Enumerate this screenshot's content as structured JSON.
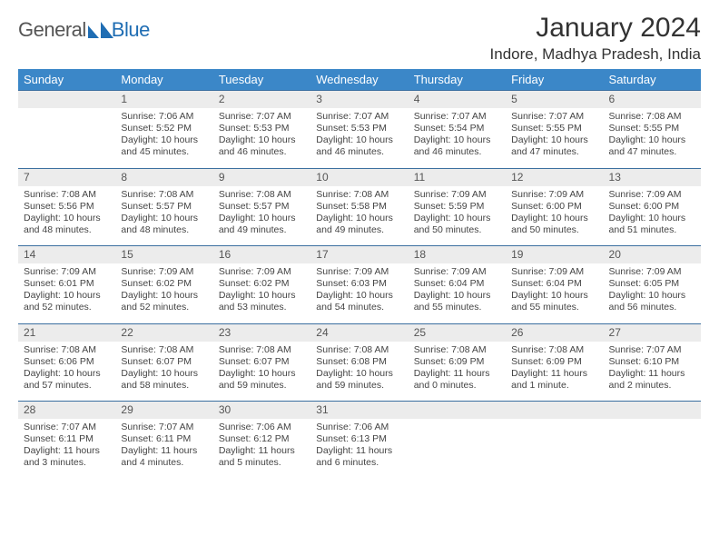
{
  "brand": {
    "part1": "General",
    "part2": "Blue"
  },
  "title": "January 2024",
  "location": "Indore, Madhya Pradesh, India",
  "colors": {
    "header_bg": "#3b87c8",
    "row_border": "#3b6fa0",
    "daynum_bg": "#ececec",
    "text": "#444",
    "title": "#333"
  },
  "daysOfWeek": [
    "Sunday",
    "Monday",
    "Tuesday",
    "Wednesday",
    "Thursday",
    "Friday",
    "Saturday"
  ],
  "firstWeekday": 1,
  "daysInMonth": 31,
  "days": {
    "1": {
      "sunrise": "7:06 AM",
      "sunset": "5:52 PM",
      "daylight": "10 hours and 45 minutes."
    },
    "2": {
      "sunrise": "7:07 AM",
      "sunset": "5:53 PM",
      "daylight": "10 hours and 46 minutes."
    },
    "3": {
      "sunrise": "7:07 AM",
      "sunset": "5:53 PM",
      "daylight": "10 hours and 46 minutes."
    },
    "4": {
      "sunrise": "7:07 AM",
      "sunset": "5:54 PM",
      "daylight": "10 hours and 46 minutes."
    },
    "5": {
      "sunrise": "7:07 AM",
      "sunset": "5:55 PM",
      "daylight": "10 hours and 47 minutes."
    },
    "6": {
      "sunrise": "7:08 AM",
      "sunset": "5:55 PM",
      "daylight": "10 hours and 47 minutes."
    },
    "7": {
      "sunrise": "7:08 AM",
      "sunset": "5:56 PM",
      "daylight": "10 hours and 48 minutes."
    },
    "8": {
      "sunrise": "7:08 AM",
      "sunset": "5:57 PM",
      "daylight": "10 hours and 48 minutes."
    },
    "9": {
      "sunrise": "7:08 AM",
      "sunset": "5:57 PM",
      "daylight": "10 hours and 49 minutes."
    },
    "10": {
      "sunrise": "7:08 AM",
      "sunset": "5:58 PM",
      "daylight": "10 hours and 49 minutes."
    },
    "11": {
      "sunrise": "7:09 AM",
      "sunset": "5:59 PM",
      "daylight": "10 hours and 50 minutes."
    },
    "12": {
      "sunrise": "7:09 AM",
      "sunset": "6:00 PM",
      "daylight": "10 hours and 50 minutes."
    },
    "13": {
      "sunrise": "7:09 AM",
      "sunset": "6:00 PM",
      "daylight": "10 hours and 51 minutes."
    },
    "14": {
      "sunrise": "7:09 AM",
      "sunset": "6:01 PM",
      "daylight": "10 hours and 52 minutes."
    },
    "15": {
      "sunrise": "7:09 AM",
      "sunset": "6:02 PM",
      "daylight": "10 hours and 52 minutes."
    },
    "16": {
      "sunrise": "7:09 AM",
      "sunset": "6:02 PM",
      "daylight": "10 hours and 53 minutes."
    },
    "17": {
      "sunrise": "7:09 AM",
      "sunset": "6:03 PM",
      "daylight": "10 hours and 54 minutes."
    },
    "18": {
      "sunrise": "7:09 AM",
      "sunset": "6:04 PM",
      "daylight": "10 hours and 55 minutes."
    },
    "19": {
      "sunrise": "7:09 AM",
      "sunset": "6:04 PM",
      "daylight": "10 hours and 55 minutes."
    },
    "20": {
      "sunrise": "7:09 AM",
      "sunset": "6:05 PM",
      "daylight": "10 hours and 56 minutes."
    },
    "21": {
      "sunrise": "7:08 AM",
      "sunset": "6:06 PM",
      "daylight": "10 hours and 57 minutes."
    },
    "22": {
      "sunrise": "7:08 AM",
      "sunset": "6:07 PM",
      "daylight": "10 hours and 58 minutes."
    },
    "23": {
      "sunrise": "7:08 AM",
      "sunset": "6:07 PM",
      "daylight": "10 hours and 59 minutes."
    },
    "24": {
      "sunrise": "7:08 AM",
      "sunset": "6:08 PM",
      "daylight": "10 hours and 59 minutes."
    },
    "25": {
      "sunrise": "7:08 AM",
      "sunset": "6:09 PM",
      "daylight": "11 hours and 0 minutes."
    },
    "26": {
      "sunrise": "7:08 AM",
      "sunset": "6:09 PM",
      "daylight": "11 hours and 1 minute."
    },
    "27": {
      "sunrise": "7:07 AM",
      "sunset": "6:10 PM",
      "daylight": "11 hours and 2 minutes."
    },
    "28": {
      "sunrise": "7:07 AM",
      "sunset": "6:11 PM",
      "daylight": "11 hours and 3 minutes."
    },
    "29": {
      "sunrise": "7:07 AM",
      "sunset": "6:11 PM",
      "daylight": "11 hours and 4 minutes."
    },
    "30": {
      "sunrise": "7:06 AM",
      "sunset": "6:12 PM",
      "daylight": "11 hours and 5 minutes."
    },
    "31": {
      "sunrise": "7:06 AM",
      "sunset": "6:13 PM",
      "daylight": "11 hours and 6 minutes."
    }
  },
  "labels": {
    "sunrise": "Sunrise:",
    "sunset": "Sunset:",
    "daylight": "Daylight:"
  }
}
